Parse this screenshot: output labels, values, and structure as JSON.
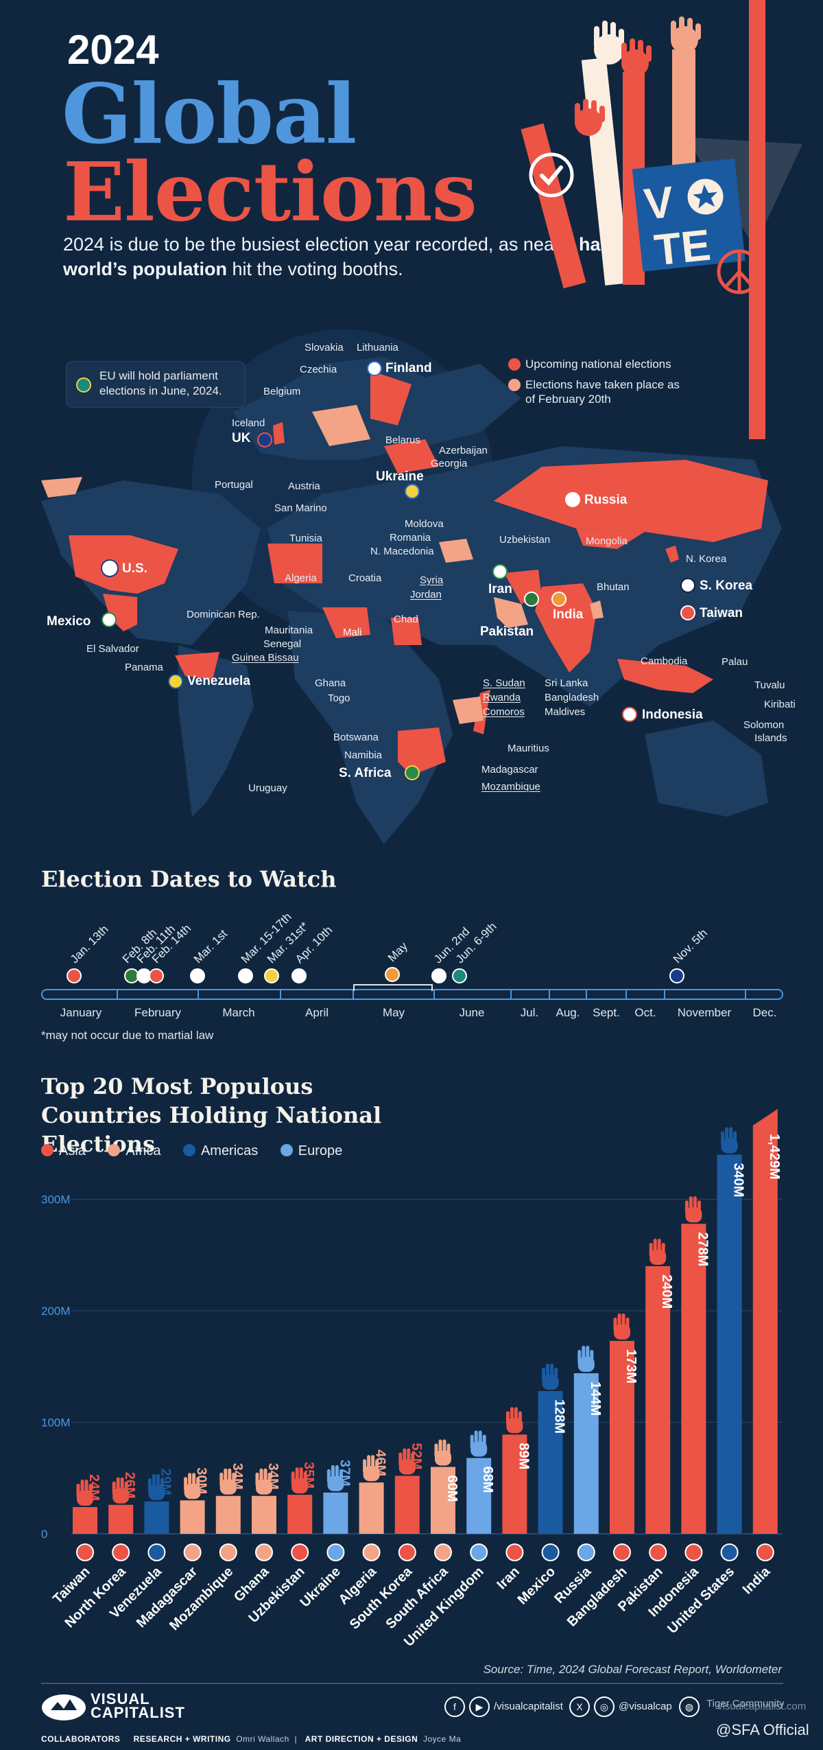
{
  "header": {
    "year": "2024",
    "title_line1": "Global",
    "title_line2": "Elections",
    "subtitle_pre": "2024 is due to be the busiest election year recorded, as nearly ",
    "subtitle_bold": "half of the world’s population",
    "subtitle_post": " hit the voting booths.",
    "vote_word_1": "V",
    "vote_word_2": "TE"
  },
  "map": {
    "eu_note": "EU will hold parliament elections in June, 2024.",
    "legend": {
      "upcoming": "Upcoming national elections",
      "taken_place": "Elections have taken place as of February 20th"
    },
    "labels": {
      "slovakia": "Slovakia",
      "lithuania": "Lithuania",
      "finland": "Finland",
      "czechia": "Czechia",
      "belgium": "Belgium",
      "iceland": "Iceland",
      "uk": "UK",
      "belarus": "Belarus",
      "azerbaijan": "Azerbaijan",
      "georgia": "Georgia",
      "portugal": "Portugal",
      "austria": "Austria",
      "ukraine": "Ukraine",
      "san_marino": "San Marino",
      "moldova": "Moldova",
      "romania": "Romania",
      "n_macedonia": "N. Macedonia",
      "russia": "Russia",
      "mongolia": "Mongolia",
      "uzbekistan": "Uzbekistan",
      "tunisia": "Tunisia",
      "algeria": "Algeria",
      "croatia": "Croatia",
      "us": "U.S.",
      "n_korea": "N. Korea",
      "s_korea": "S. Korea",
      "taiwan": "Taiwan",
      "iran": "Iran",
      "syria": "Syria",
      "jordan": "Jordan",
      "bhutan": "Bhutan",
      "india": "India",
      "pakistan": "Pakistan",
      "mexico": "Mexico",
      "dominican_rep": "Dominican Rep.",
      "el_salvador": "El Salvador",
      "panama": "Panama",
      "venezuela": "Venezuela",
      "mauritania": "Mauritania",
      "senegal": "Senegal",
      "guinea_bissau": "Guinea Bissau",
      "mali": "Mali",
      "chad": "Chad",
      "cambodia": "Cambodia",
      "palau": "Palau",
      "ghana": "Ghana",
      "togo": "Togo",
      "s_sudan": "S. Sudan",
      "rwanda": "Rwanda",
      "comoros": "Comoros",
      "sri_lanka": "Sri Lanka",
      "bangladesh": "Bangladesh",
      "maldives": "Maldives",
      "indonesia": "Indonesia",
      "tuvalu": "Tuvalu",
      "kiribati": "Kiribati",
      "solomon_islands_1": "Solomon",
      "solomon_islands_2": "Islands",
      "botswana": "Botswana",
      "namibia": "Namibia",
      "mauritius": "Mauritius",
      "s_africa": "S. Africa",
      "madagascar": "Madagascar",
      "mozambique": "Mozambique",
      "uruguay": "Uruguay"
    }
  },
  "timeline": {
    "title": "Election Dates to Watch",
    "months": [
      "January",
      "February",
      "March",
      "April",
      "May",
      "June",
      "Jul.",
      "Aug.",
      "Sept.",
      "Oct.",
      "November",
      "Dec."
    ],
    "dates": [
      "Jan. 13th",
      "Feb. 8th",
      "Feb. 11th",
      "Feb. 14th",
      "Mar. 1st",
      "Mar. 15-17th",
      "Mar. 31st*",
      "Apr. 10th",
      "May",
      "Jun. 2nd",
      "Jun. 6-9th",
      "Nov. 5th"
    ],
    "note": "*may not occur due to martial law"
  },
  "chart_data": {
    "type": "bar",
    "title": "Top 20 Most Populous Countries Holding National Elections",
    "xlabel": "",
    "ylabel": "",
    "ylim": [
      0,
      1429
    ],
    "y_ticks": [
      "0",
      "100M",
      "200M",
      "300M"
    ],
    "legend": [
      "Asia",
      "Africa",
      "Americas",
      "Europe"
    ],
    "categories": [
      "Taiwan",
      "North Korea",
      "Venezuela",
      "Madagascar",
      "Mozambique",
      "Ghana",
      "Uzbekistan",
      "Ukraine",
      "Algeria",
      "South Korea",
      "South Africa",
      "United Kingdom",
      "Iran",
      "Mexico",
      "Russia",
      "Bangladesh",
      "Pakistan",
      "Indonesia",
      "United States",
      "India"
    ],
    "values": [
      24,
      26,
      29,
      30,
      34,
      34,
      35,
      37,
      46,
      52,
      60,
      68,
      89,
      128,
      144,
      173,
      240,
      278,
      340,
      1429
    ],
    "value_labels": [
      "24M",
      "26M",
      "29M",
      "30M",
      "34M",
      "34M",
      "35M",
      "37M",
      "46M",
      "52M",
      "60M",
      "68M",
      "89M",
      "128M",
      "144M",
      "173M",
      "240M",
      "278M",
      "340M",
      "1,429M"
    ],
    "regions": [
      "Asia",
      "Asia",
      "Americas",
      "Africa",
      "Africa",
      "Africa",
      "Asia",
      "Europe",
      "Africa",
      "Asia",
      "Africa",
      "Europe",
      "Asia",
      "Americas",
      "Europe",
      "Asia",
      "Asia",
      "Asia",
      "Americas",
      "Asia"
    ]
  },
  "colors": {
    "background": "#10263f",
    "asia": "#ec5446",
    "africa": "#f3a486",
    "americas": "#1a5aa0",
    "europe": "#6ba6e6",
    "map_land": "#1d3d61"
  },
  "footer": {
    "source": "Source: Time, 2024 Global Forecast Report, Worldometer",
    "brand_1": "VISUAL",
    "brand_2": "CAPITALIST",
    "collab_label": "COLLABORATORS",
    "research_label": "RESEARCH + WRITING",
    "research_name": "Omri Wallach",
    "art_label": "ART DIRECTION + DESIGN",
    "art_name": "Joyce Ma",
    "social_1": "/visualcapitalist",
    "social_2": "@visualcap",
    "social_3": "visualcapitalist.com",
    "watermark_1": "Tiger Community",
    "watermark_2": "@SFA Official"
  }
}
